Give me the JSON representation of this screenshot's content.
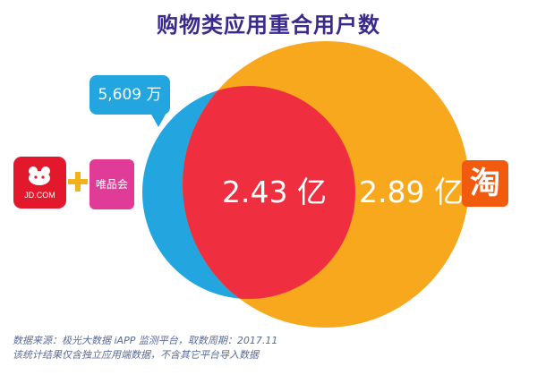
{
  "title": "购物类应用重合用户数",
  "venn": {
    "left_set": {
      "name": "京东 + 唯品会",
      "only_value": "5,609 万",
      "color": "#23a6e0"
    },
    "intersection": {
      "value": "2.43 亿",
      "color": "#ef2f40"
    },
    "right_set": {
      "name": "淘宝",
      "only_value": "2.89 亿",
      "color": "#f7a81c"
    }
  },
  "logos": {
    "jd": {
      "text": "JD.COM",
      "color": "#e4182c"
    },
    "vph": {
      "text": "唯品会",
      "color": "#e13b98"
    },
    "taobao": {
      "text": "淘",
      "color": "#f25a0d"
    },
    "plus_color": "#f3b21c"
  },
  "source": {
    "line1": "数据来源：极光大数据 iAPP 监测平台，取数周期：2017.11",
    "line2": "该统计结果仅含独立应用端数据，不含其它平台导入数据"
  }
}
